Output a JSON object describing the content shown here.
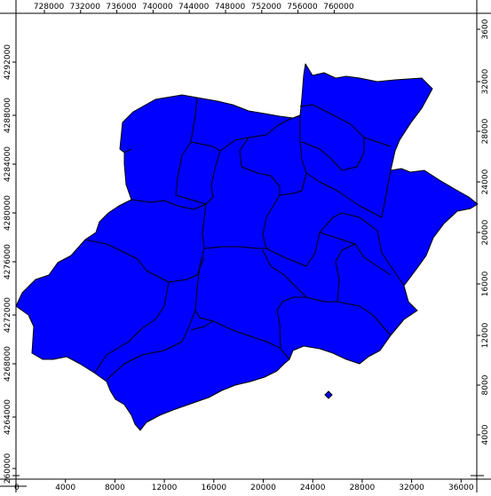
{
  "colors": {
    "region_fill": "#0000ff",
    "boundary": "#000000",
    "background": "#ffffff",
    "frame": "#000000"
  },
  "axes": {
    "top_x_ticks": [
      "728000",
      "732000",
      "736000",
      "740000",
      "744000",
      "748000",
      "752000",
      "756000",
      "760000"
    ],
    "bottom_x_ticks": [
      "0",
      "4000",
      "8000",
      "12000",
      "16000",
      "20000",
      "24000",
      "28000",
      "32000",
      "36000"
    ],
    "left_y_ticks": [
      "4292000",
      "4288000",
      "4284000",
      "4280000",
      "4276000",
      "4272000",
      "4268000",
      "4264000",
      "260000"
    ],
    "right_y_ticks": [
      "3600",
      "32000",
      "28000",
      "24000",
      "20000",
      "16000",
      "12000",
      "8000",
      "4000"
    ]
  }
}
